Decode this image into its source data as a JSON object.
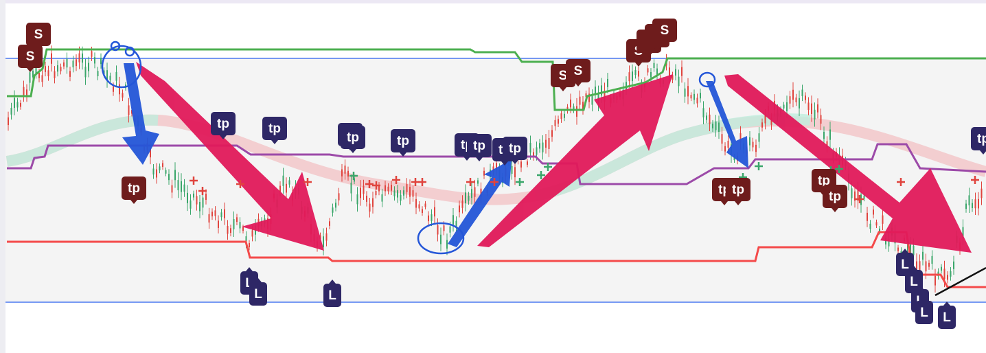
{
  "markers": {
    "sell": [
      "S",
      "S",
      "S",
      "S",
      "S",
      "S",
      "S",
      "S"
    ],
    "take_profit_short": [
      "tp",
      "tp",
      "tp",
      "tp",
      "tp"
    ],
    "take_profit_long": [
      "tp",
      "tp",
      "tp",
      "tp",
      "tp",
      "tp",
      "tp",
      "tp",
      "tp",
      "tp"
    ],
    "long": [
      "L",
      "L",
      "L",
      "L",
      "L",
      "L",
      "L",
      "L"
    ]
  },
  "colors": {
    "sell": "#6e1c1c",
    "take_profit_short": "#6e1c1c",
    "take_profit_long": "#2e2766",
    "long": "#2e2766"
  }
}
